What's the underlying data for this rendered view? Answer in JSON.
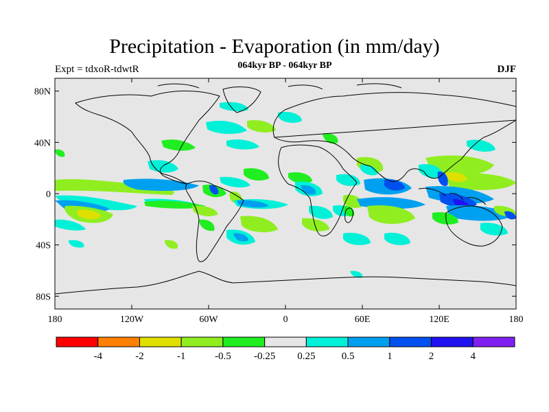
{
  "title": "Precipitation - Evaporation (in mm/day)",
  "subtitle": "064kyr BP - 064kyr BP",
  "experiment": "Expt = tdxoR-tdwtR",
  "season": "DJF",
  "y_ticks": [
    {
      "label": "80N",
      "lat": 80
    },
    {
      "label": "40N",
      "lat": 40
    },
    {
      "label": "0",
      "lat": 0
    },
    {
      "label": "40S",
      "lat": -40
    },
    {
      "label": "80S",
      "lat": -80
    }
  ],
  "x_ticks": [
    {
      "label": "180",
      "lon": -180
    },
    {
      "label": "120W",
      "lon": -120
    },
    {
      "label": "60W",
      "lon": -60
    },
    {
      "label": "0",
      "lon": 0
    },
    {
      "label": "60E",
      "lon": 60
    },
    {
      "label": "120E",
      "lon": 120
    },
    {
      "label": "180",
      "lon": 180
    }
  ],
  "colorbar": {
    "colors": [
      "#ff0000",
      "#ff8000",
      "#e0e000",
      "#90ee20",
      "#20ee20",
      "#e6e6e6",
      "#00f0d8",
      "#00a0f0",
      "#0050f0",
      "#2010f0",
      "#8020f0"
    ],
    "labels": [
      "-4",
      "-2",
      "-1",
      "-0.5",
      "-0.25",
      "0.25",
      "0.5",
      "1",
      "2",
      "4"
    ]
  },
  "colors": {
    "background": "#e6e6e6",
    "coast": "#000000"
  },
  "colors_meaning": "bins: <-4,-4..-2,-2..-1,-1..-0.5,-0.5..-0.25,-0.25..0.25,0.25..0.5,0.5..1,1..2,2..4,>4"
}
